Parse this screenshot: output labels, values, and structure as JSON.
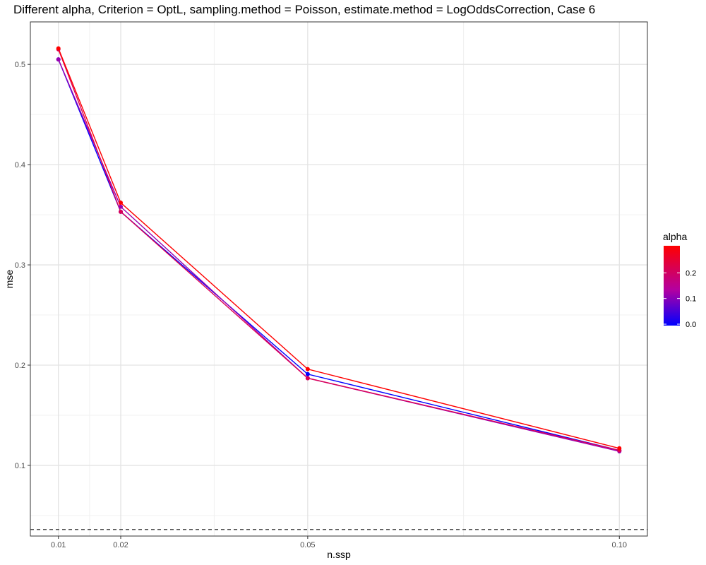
{
  "chart_data": {
    "type": "line",
    "title": "Different alpha, Criterion = OptL, sampling.method = Poisson, estimate.method = LogOddsCorrection, Case 6",
    "xlabel": "n.ssp",
    "ylabel": "mse",
    "x_ticks": [
      "0.01",
      "0.02",
      "0.05",
      "0.10"
    ],
    "y_ticks": [
      "0.1",
      "0.2",
      "0.3",
      "0.4",
      "0.5"
    ],
    "xlim": [
      0.0055,
      0.1045
    ],
    "ylim": [
      0.0295,
      0.5424
    ],
    "x": [
      0.01,
      0.02,
      0.05,
      0.1
    ],
    "series": [
      {
        "alpha": 0.0,
        "values": [
          0.505,
          0.353,
          0.191,
          0.115
        ],
        "color": "#0000ff"
      },
      {
        "alpha": 0.1,
        "values": [
          0.505,
          0.358,
          0.187,
          0.114
        ],
        "color": "#9900b0"
      },
      {
        "alpha": 0.2,
        "values": [
          0.515,
          0.353,
          0.187,
          0.115
        ],
        "color": "#dd0055"
      },
      {
        "alpha": 0.3,
        "values": [
          0.516,
          0.362,
          0.196,
          0.117
        ],
        "color": "#ff0000"
      }
    ],
    "reference_line": {
      "y": 0.036,
      "style": "dashed",
      "color": "#333333"
    },
    "grid": true,
    "legend": {
      "title": "alpha",
      "position": "right",
      "type": "colorbar",
      "labels": [
        "0.0",
        "0.1",
        "0.2"
      ],
      "low_color": "#0000ff",
      "high_color": "#ff0000"
    }
  }
}
